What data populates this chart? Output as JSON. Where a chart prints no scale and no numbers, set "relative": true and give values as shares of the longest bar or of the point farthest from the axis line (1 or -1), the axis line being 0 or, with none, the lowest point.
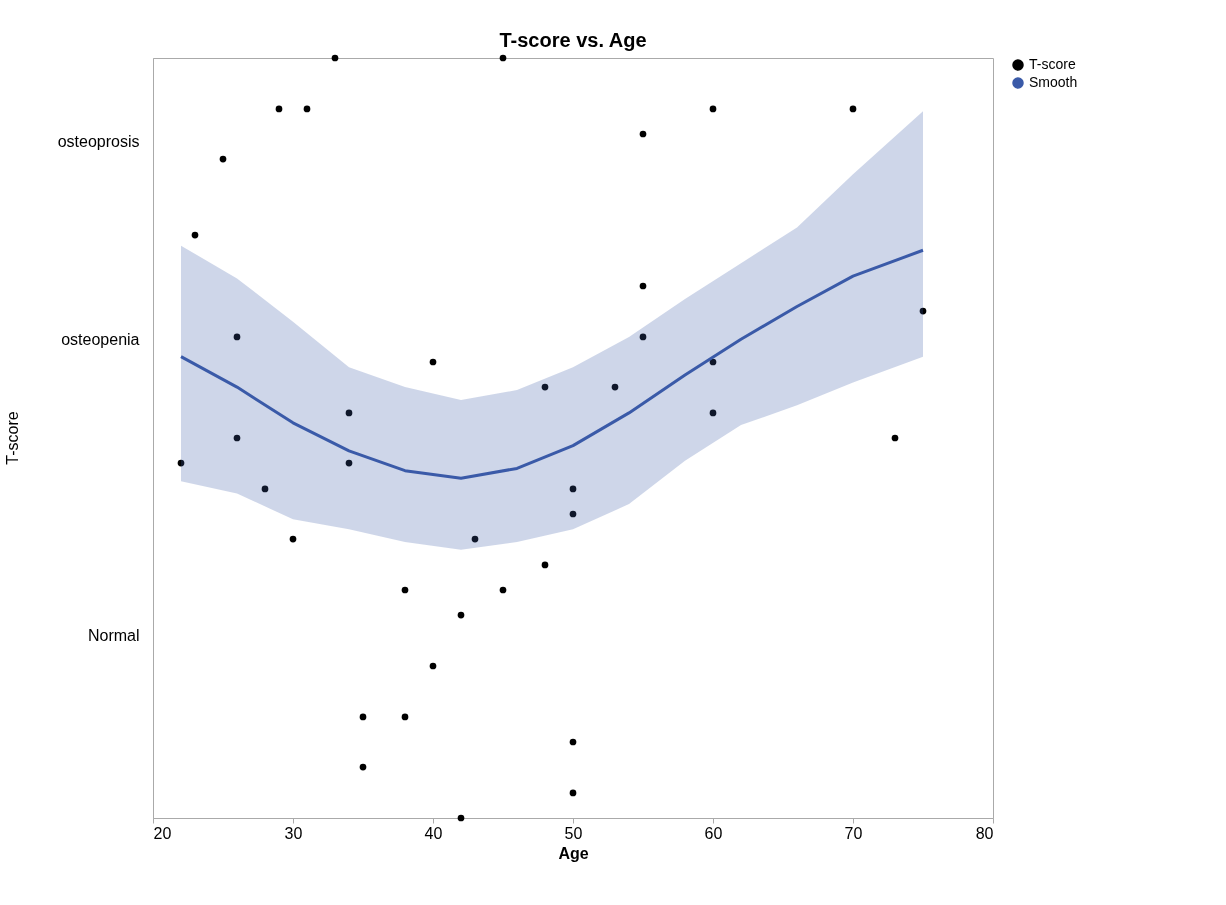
{
  "chart_data": {
    "type": "scatter",
    "title": "T-score vs. Age",
    "xlabel": "Age",
    "xlim": [
      20,
      80
    ],
    "xticks": [
      20,
      30,
      40,
      50,
      60,
      70,
      80
    ],
    "relative": true,
    "annotations": [
      "osteoprosis",
      "osteopenia",
      "Normal",
      "T-score"
    ],
    "grid": false,
    "legend": "top right",
    "marker": "circle",
    "series": [
      {
        "name": "T-score",
        "type": "scatter",
        "color": "#000000",
        "x": [
          33,
          45,
          29,
          31,
          60,
          70,
          55,
          25,
          23,
          55,
          75,
          26,
          55,
          40,
          60,
          48,
          53,
          34,
          60,
          26,
          73,
          22,
          34,
          28,
          50,
          50,
          30,
          43,
          48,
          38,
          45,
          42,
          40,
          35,
          38,
          50,
          35,
          50,
          42
        ],
        "values": [
          1,
          1,
          0.933,
          0.933,
          0.933,
          0.933,
          0.9,
          0.867,
          0.767,
          0.7,
          0.667,
          0.633,
          0.633,
          0.6,
          0.6,
          0.567,
          0.567,
          0.533,
          0.533,
          0.5,
          0.5,
          0.467,
          0.467,
          0.433,
          0.433,
          0.4,
          0.367,
          0.367,
          0.333,
          0.3,
          0.3,
          0.267,
          0.2,
          0.133,
          0.133,
          0.1,
          0.067,
          0.033,
          0
        ]
      },
      {
        "name": "Smooth",
        "type": "line",
        "marker": "none",
        "color": "#3a5aa8",
        "x": [
          22,
          26,
          30,
          34,
          38,
          42,
          46,
          50,
          54,
          58,
          62,
          66,
          70,
          75
        ],
        "values": [
          0.607,
          0.567,
          0.52,
          0.483,
          0.457,
          0.447,
          0.46,
          0.49,
          0.533,
          0.583,
          0.63,
          0.673,
          0.713,
          0.747
        ],
        "lower": [
          0.443,
          0.427,
          0.393,
          0.38,
          0.363,
          0.353,
          0.363,
          0.38,
          0.413,
          0.47,
          0.517,
          0.543,
          0.573,
          0.607
        ],
        "upper": [
          0.753,
          0.71,
          0.653,
          0.593,
          0.567,
          0.55,
          0.563,
          0.593,
          0.633,
          0.683,
          0.73,
          0.777,
          0.847,
          0.93
        ]
      }
    ]
  }
}
